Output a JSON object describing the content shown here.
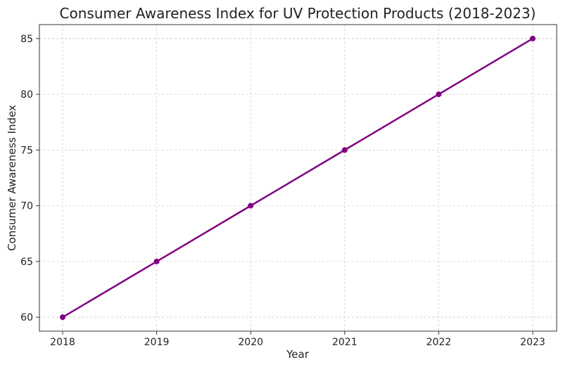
{
  "chart_data": {
    "type": "line",
    "title": "Consumer Awareness Index for UV Protection Products (2018-2023)",
    "xlabel": "Year",
    "ylabel": "Consumer Awareness Index",
    "x": [
      "2018",
      "2019",
      "2020",
      "2021",
      "2022",
      "2023"
    ],
    "series": [
      {
        "values": [
          60,
          65,
          70,
          75,
          80,
          85
        ]
      }
    ],
    "ylim": [
      58.75,
      86.25
    ],
    "yticks": [
      60,
      65,
      70,
      75,
      80,
      85
    ],
    "grid": true,
    "marker": "circle",
    "colors": {
      "line": "#800080",
      "grid": "#cccccc",
      "axis": "#333333"
    }
  }
}
